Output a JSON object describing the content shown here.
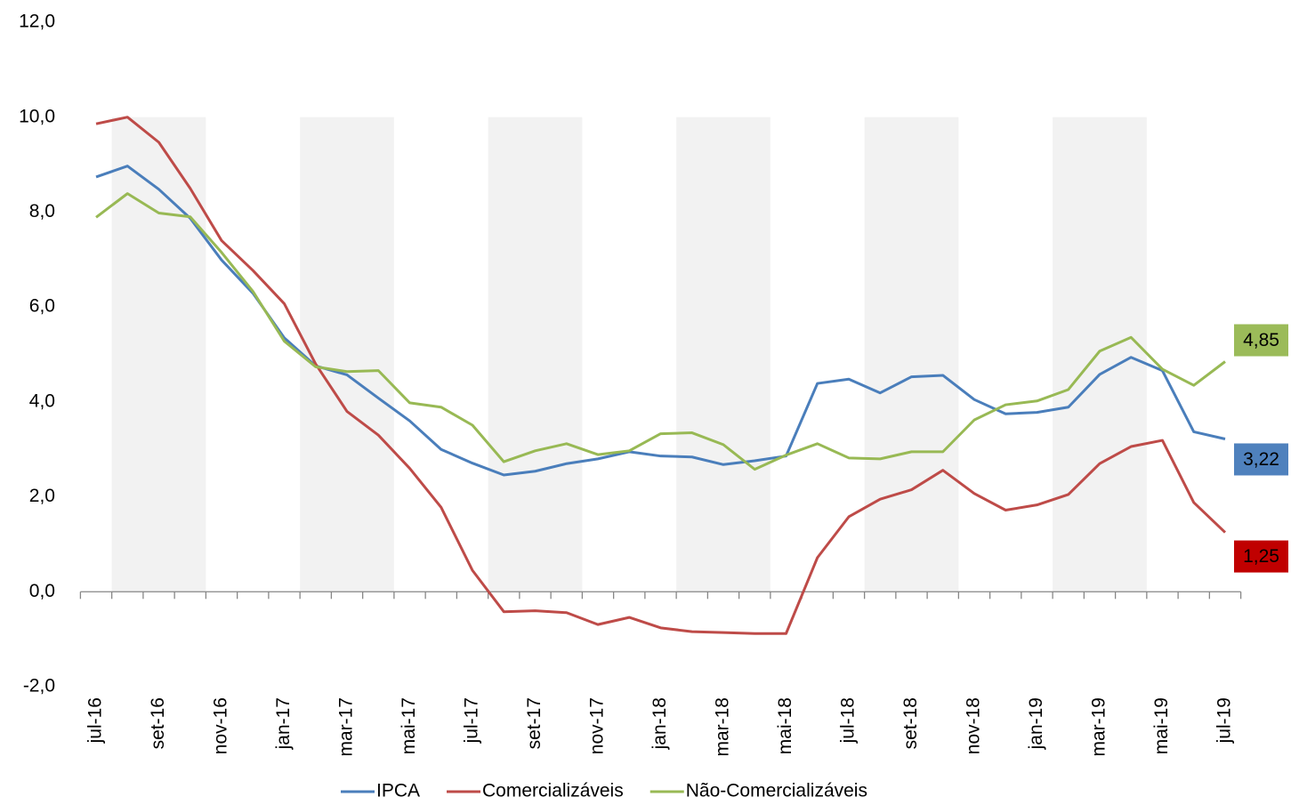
{
  "chart_data": {
    "type": "line",
    "categories": [
      "jul-16",
      null,
      "set-16",
      null,
      "nov-16",
      null,
      "jan-17",
      null,
      "mar-17",
      null,
      "mai-17",
      null,
      "jul-17",
      null,
      "set-17",
      null,
      "nov-17",
      null,
      "jan-18",
      null,
      "mar-18",
      null,
      "mai-18",
      null,
      "jul-18",
      null,
      "set-18",
      null,
      "nov-18",
      null,
      "jan-19",
      null,
      "mar-19",
      null,
      "mai-19",
      null,
      "jul-19"
    ],
    "ylim": [
      -2,
      12
    ],
    "yticks": [
      {
        "value": -2,
        "label": "-2,0"
      },
      {
        "value": 0,
        "label": "0,0"
      },
      {
        "value": 2,
        "label": "2,0"
      },
      {
        "value": 4,
        "label": "4,0"
      },
      {
        "value": 6,
        "label": "6,0"
      },
      {
        "value": 8,
        "label": "8,0"
      },
      {
        "value": 10,
        "label": "10,0"
      },
      {
        "value": 12,
        "label": "12,0"
      }
    ],
    "legend": "bottom",
    "series": [
      {
        "name": "IPCA",
        "color": "#4a7ebb",
        "label_color": "#4f81bd",
        "values": [
          8.74,
          8.97,
          8.48,
          7.87,
          6.99,
          6.29,
          5.35,
          4.76,
          4.57,
          4.08,
          3.6,
          3.0,
          2.71,
          2.46,
          2.54,
          2.7,
          2.8,
          2.95,
          2.86,
          2.84,
          2.68,
          2.76,
          2.86,
          4.39,
          4.48,
          4.19,
          4.53,
          4.56,
          4.05,
          3.75,
          3.78,
          3.89,
          4.58,
          4.94,
          4.66,
          3.37,
          3.22
        ],
        "value_labels": [
          null,
          null,
          null,
          null,
          null,
          null,
          null,
          null,
          null,
          null,
          null,
          null,
          null,
          null,
          null,
          null,
          null,
          null,
          null,
          null,
          null,
          null,
          null,
          null,
          null,
          null,
          null,
          null,
          null,
          null,
          null,
          null,
          null,
          null,
          null,
          null,
          "3,22"
        ]
      },
      {
        "name": "Comercializáveis",
        "color": "#be4b48",
        "label_color": "#c00000",
        "values": [
          9.86,
          10.0,
          9.47,
          8.5,
          7.4,
          6.77,
          6.07,
          4.8,
          3.8,
          3.3,
          2.6,
          1.78,
          0.45,
          -0.42,
          -0.4,
          -0.44,
          -0.69,
          -0.54,
          -0.76,
          -0.84,
          -0.86,
          -0.88,
          -0.88,
          0.72,
          1.58,
          1.95,
          2.15,
          2.56,
          2.07,
          1.72,
          1.83,
          2.05,
          2.7,
          3.06,
          3.19,
          1.88,
          1.25
        ],
        "value_labels": [
          null,
          null,
          null,
          null,
          null,
          null,
          null,
          null,
          null,
          null,
          null,
          null,
          null,
          null,
          null,
          null,
          null,
          null,
          null,
          null,
          null,
          null,
          null,
          null,
          null,
          null,
          null,
          null,
          null,
          null,
          null,
          null,
          null,
          null,
          null,
          null,
          "1,25"
        ]
      },
      {
        "name": "Não-Comercializáveis",
        "color": "#98b954",
        "label_color": "#9bbb59",
        "values": [
          7.89,
          8.39,
          7.98,
          7.9,
          7.15,
          6.33,
          5.28,
          4.74,
          4.64,
          4.66,
          3.98,
          3.89,
          3.51,
          2.74,
          2.97,
          3.12,
          2.89,
          2.97,
          3.33,
          3.35,
          3.1,
          2.58,
          2.88,
          3.12,
          2.82,
          2.8,
          2.95,
          2.95,
          3.62,
          3.94,
          4.02,
          4.26,
          5.07,
          5.36,
          4.69,
          4.35,
          4.85
        ],
        "value_labels": [
          null,
          null,
          null,
          null,
          null,
          null,
          null,
          null,
          null,
          null,
          null,
          null,
          null,
          null,
          null,
          null,
          null,
          null,
          null,
          null,
          null,
          null,
          null,
          null,
          null,
          null,
          null,
          null,
          null,
          null,
          null,
          null,
          null,
          null,
          null,
          null,
          "4,85"
        ]
      }
    ]
  }
}
